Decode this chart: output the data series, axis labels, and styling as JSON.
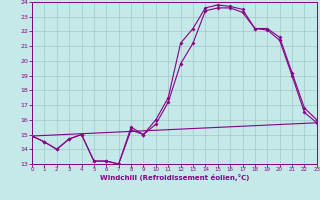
{
  "xlabel": "Windchill (Refroidissement éolien,°C)",
  "bg_color": "#c5e8e8",
  "grid_color": "#a0c8c8",
  "line_color": "#880088",
  "x_min": 0,
  "x_max": 23,
  "y_min": 13,
  "y_max": 24,
  "line1_x": [
    0,
    1,
    2,
    3,
    4,
    5,
    6,
    7,
    8,
    9,
    10,
    11,
    12,
    13,
    14,
    15,
    16,
    17,
    18,
    19,
    20,
    21,
    22,
    23
  ],
  "line1_y": [
    14.9,
    14.5,
    14.0,
    14.7,
    15.0,
    13.2,
    13.2,
    13.0,
    15.5,
    15.0,
    16.0,
    17.5,
    21.2,
    22.2,
    23.6,
    23.8,
    23.7,
    23.5,
    22.2,
    22.2,
    21.6,
    19.2,
    16.8,
    16.0
  ],
  "line2_x": [
    0,
    1,
    2,
    3,
    4,
    5,
    6,
    7,
    8,
    9,
    10,
    11,
    12,
    13,
    14,
    15,
    16,
    17,
    18,
    19,
    20,
    21,
    22,
    23
  ],
  "line2_y": [
    14.9,
    14.5,
    14.0,
    14.7,
    15.0,
    13.2,
    13.2,
    13.0,
    15.3,
    15.0,
    15.7,
    17.2,
    19.8,
    21.2,
    23.4,
    23.6,
    23.6,
    23.3,
    22.2,
    22.1,
    21.4,
    19.0,
    16.5,
    15.8
  ],
  "line3_x": [
    0,
    23
  ],
  "line3_y": [
    14.9,
    15.8
  ]
}
